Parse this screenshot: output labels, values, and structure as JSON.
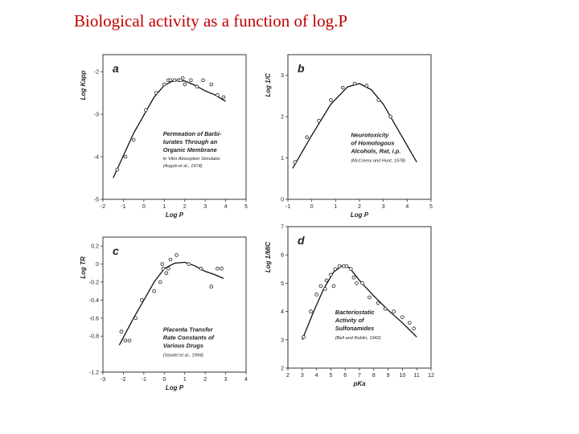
{
  "slide": {
    "title": "Biological activity as a function of log.P"
  },
  "chart_data": [
    {
      "type": "scatter",
      "panel": "a",
      "xlabel": "Log P",
      "ylabel": "Log Kapp",
      "xlim": [
        -2,
        5
      ],
      "ylim": [
        -5,
        -1.6
      ],
      "xticks": [
        -2,
        -1,
        0,
        1,
        2,
        3,
        4,
        5
      ],
      "yticks": [
        -2,
        -3,
        -4,
        -5
      ],
      "caption": [
        "Permeation of Barbi-",
        "turates Through an",
        "Organic Membrane"
      ],
      "caption_sub": "In Vitro Absorption Simulator",
      "citation": "(Augsb et al., 1974)",
      "points": [
        [
          -1.3,
          -4.3
        ],
        [
          -0.9,
          -4.0
        ],
        [
          -0.5,
          -3.6
        ],
        [
          0.1,
          -2.9
        ],
        [
          0.6,
          -2.5
        ],
        [
          1.0,
          -2.3
        ],
        [
          1.2,
          -2.2
        ],
        [
          1.3,
          -2.2
        ],
        [
          1.5,
          -2.2
        ],
        [
          1.7,
          -2.2
        ],
        [
          1.8,
          -2.2
        ],
        [
          1.9,
          -2.15
        ],
        [
          2.0,
          -2.3
        ],
        [
          2.3,
          -2.2
        ],
        [
          2.6,
          -2.35
        ],
        [
          2.9,
          -2.2
        ],
        [
          3.3,
          -2.3
        ],
        [
          3.6,
          -2.55
        ],
        [
          3.9,
          -2.6
        ]
      ],
      "curve": [
        [
          -1.5,
          -4.5
        ],
        [
          -0.5,
          -3.45
        ],
        [
          0.5,
          -2.6
        ],
        [
          1.0,
          -2.32
        ],
        [
          1.5,
          -2.2
        ],
        [
          2.0,
          -2.22
        ],
        [
          2.5,
          -2.32
        ],
        [
          3.0,
          -2.45
        ],
        [
          3.5,
          -2.55
        ],
        [
          4.0,
          -2.7
        ]
      ]
    },
    {
      "type": "scatter",
      "panel": "b",
      "xlabel": "Log P",
      "ylabel": "Log 1/C",
      "xlim": [
        -1,
        5
      ],
      "ylim": [
        0,
        3.5
      ],
      "xticks": [
        -1,
        0,
        1,
        2,
        3,
        4,
        5
      ],
      "yticks": [
        0,
        1,
        2,
        3
      ],
      "caption": [
        "Neurotoxicity",
        "of Homologous",
        "Alcohols, Rat, i.p."
      ],
      "citation": "(McCreery and Hunt, 1978)",
      "points": [
        [
          -0.7,
          0.9
        ],
        [
          -0.2,
          1.5
        ],
        [
          0.3,
          1.9
        ],
        [
          0.8,
          2.4
        ],
        [
          1.3,
          2.7
        ],
        [
          1.8,
          2.8
        ],
        [
          2.3,
          2.75
        ],
        [
          2.8,
          2.4
        ],
        [
          3.3,
          2.0
        ]
      ],
      "curve": [
        [
          -0.8,
          0.75
        ],
        [
          0.0,
          1.55
        ],
        [
          0.8,
          2.3
        ],
        [
          1.5,
          2.72
        ],
        [
          2.0,
          2.8
        ],
        [
          2.5,
          2.65
        ],
        [
          3.0,
          2.3
        ],
        [
          3.5,
          1.8
        ],
        [
          4.0,
          1.3
        ],
        [
          4.4,
          0.9
        ]
      ]
    },
    {
      "type": "scatter",
      "panel": "c",
      "xlabel": "Log P",
      "ylabel": "Log TR",
      "xlim": [
        -3,
        4
      ],
      "ylim": [
        -1.2,
        0.3
      ],
      "xticks": [
        -3,
        -2,
        -1,
        0,
        1,
        2,
        3,
        4
      ],
      "yticks": [
        0.2,
        0,
        -0.2,
        -0.4,
        -0.6,
        -0.8,
        -1.2
      ],
      "caption": [
        "Placenta Transfer",
        "Rate Constants of",
        "Various Drugs"
      ],
      "citation": "(Seydel et al., 1994)",
      "points": [
        [
          -2.1,
          -0.75
        ],
        [
          -1.9,
          -0.85
        ],
        [
          -1.7,
          -0.85
        ],
        [
          -1.4,
          -0.6
        ],
        [
          -1.1,
          -0.4
        ],
        [
          -0.5,
          -0.3
        ],
        [
          -0.2,
          -0.2
        ],
        [
          -0.1,
          0.0
        ],
        [
          -0.05,
          -0.05
        ],
        [
          0.1,
          -0.1
        ],
        [
          0.2,
          -0.05
        ],
        [
          0.3,
          0.05
        ],
        [
          0.6,
          0.1
        ],
        [
          1.2,
          0.0
        ],
        [
          1.8,
          -0.05
        ],
        [
          2.3,
          -0.25
        ],
        [
          2.6,
          -0.05
        ],
        [
          2.8,
          -0.05
        ]
      ],
      "curve": [
        [
          -2.2,
          -0.9
        ],
        [
          -1.5,
          -0.6
        ],
        [
          -1.0,
          -0.4
        ],
        [
          -0.5,
          -0.2
        ],
        [
          0.0,
          -0.05
        ],
        [
          0.5,
          0.01
        ],
        [
          1.0,
          0.02
        ],
        [
          1.5,
          -0.02
        ],
        [
          2.0,
          -0.08
        ],
        [
          2.5,
          -0.12
        ],
        [
          2.9,
          -0.16
        ]
      ]
    },
    {
      "type": "scatter",
      "panel": "d",
      "xlabel": "pKa",
      "ylabel": "Log 1/MIC",
      "xlim": [
        2,
        12
      ],
      "ylim": [
        2,
        7
      ],
      "xticks": [
        2,
        3,
        4,
        5,
        6,
        7,
        8,
        9,
        10,
        11,
        12
      ],
      "yticks": [
        2,
        3,
        4,
        5,
        6,
        7
      ],
      "caption": [
        "Bacteriostatic",
        "Activity of",
        "Sulfonamides"
      ],
      "citation": "(Bell and Roblin, 1942)",
      "points": [
        [
          3.1,
          3.1
        ],
        [
          3.6,
          4.0
        ],
        [
          4.0,
          4.6
        ],
        [
          4.3,
          4.9
        ],
        [
          4.7,
          5.1
        ],
        [
          5.0,
          5.3
        ],
        [
          5.3,
          5.5
        ],
        [
          5.6,
          5.6
        ],
        [
          5.9,
          5.6
        ],
        [
          6.1,
          5.6
        ],
        [
          6.4,
          5.5
        ],
        [
          6.8,
          5.0
        ],
        [
          7.2,
          5.0
        ],
        [
          7.7,
          4.5
        ],
        [
          8.3,
          4.3
        ],
        [
          8.8,
          4.1
        ],
        [
          9.4,
          4.0
        ],
        [
          10.0,
          3.8
        ],
        [
          10.5,
          3.6
        ],
        [
          10.8,
          3.4
        ],
        [
          5.2,
          4.9
        ],
        [
          4.6,
          4.8
        ],
        [
          6.6,
          5.2
        ]
      ],
      "curve": [
        [
          3.0,
          3.0
        ],
        [
          3.8,
          4.0
        ],
        [
          4.5,
          4.8
        ],
        [
          5.2,
          5.4
        ],
        [
          5.8,
          5.62
        ],
        [
          6.3,
          5.55
        ],
        [
          7.0,
          5.1
        ],
        [
          8.0,
          4.55
        ],
        [
          9.0,
          4.05
        ],
        [
          10.0,
          3.6
        ],
        [
          11.0,
          3.1
        ]
      ]
    }
  ]
}
